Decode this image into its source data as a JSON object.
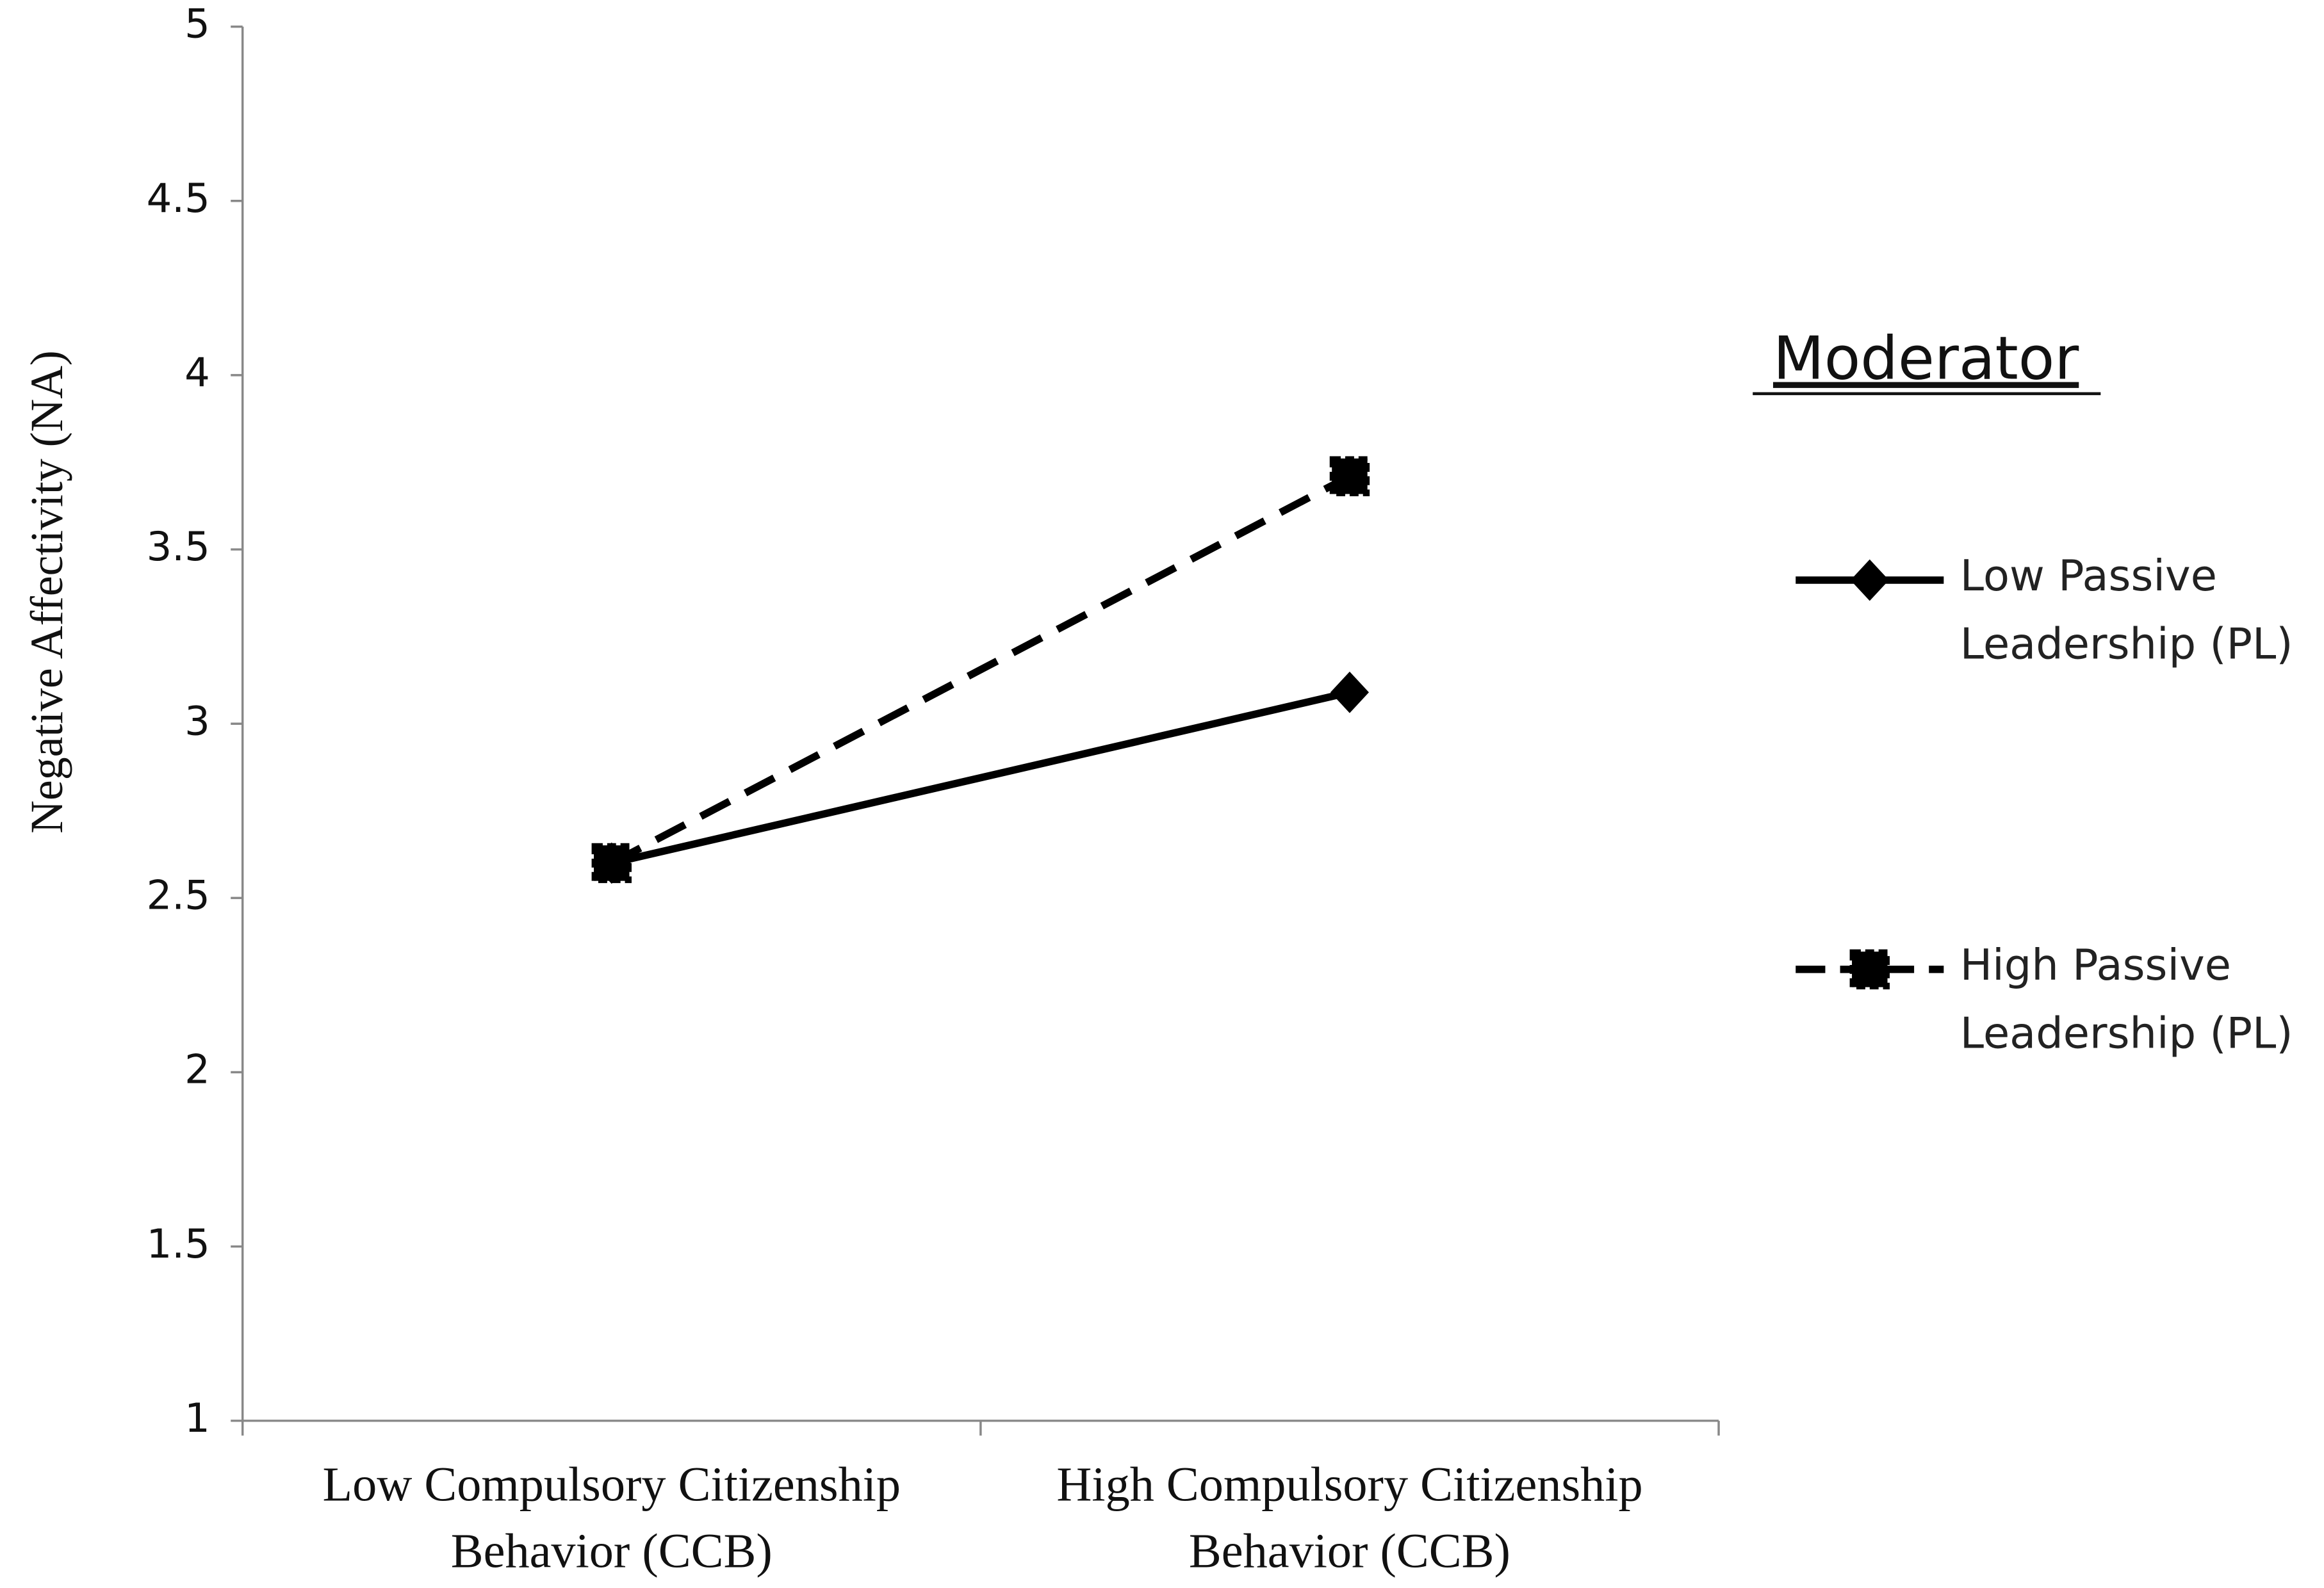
{
  "chart_data": {
    "type": "line",
    "y_label": "Negative Affectivity (NA)",
    "legend_title": "Moderator",
    "categories": [
      "Low Compulsory Citizenship Behavior (CCB)",
      "High Compulsory Citizenship Behavior (CCB)"
    ],
    "series": [
      {
        "name": "Low Passive Leadership (PL)",
        "color": "#000000",
        "line_style": "solid",
        "marker": "diamond",
        "values": [
          2.6,
          3.09
        ]
      },
      {
        "name": "High Passive Leadership (PL)",
        "color": "#000000",
        "line_style": "dashed",
        "marker": "square",
        "values": [
          2.6,
          3.71
        ]
      }
    ],
    "ylim": [
      1,
      5
    ],
    "yticks": [
      1,
      1.5,
      2,
      2.5,
      3,
      3.5,
      4,
      4.5,
      5
    ],
    "grid": false,
    "legend_position": "right"
  }
}
